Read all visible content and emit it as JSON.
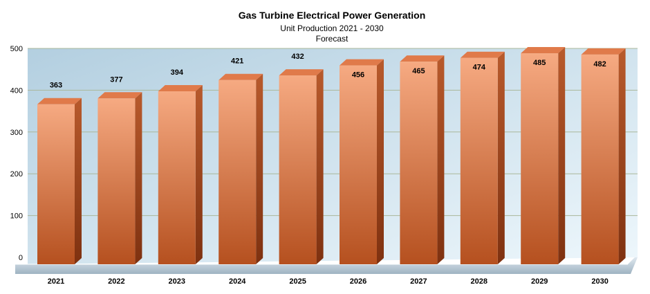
{
  "chart_data": {
    "type": "bar",
    "title": "Gas Turbine Electrical Power Generation",
    "subtitle": "Unit Production 2021 - 2030",
    "subtitle2": "Forecast",
    "categories": [
      "2021",
      "2022",
      "2023",
      "2024",
      "2025",
      "2026",
      "2027",
      "2028",
      "2029",
      "2030"
    ],
    "values": [
      363,
      377,
      394,
      421,
      432,
      456,
      465,
      474,
      485,
      482
    ],
    "value_labels": [
      "363",
      "377",
      "394",
      "421",
      "432",
      "456",
      "465",
      "474",
      "485",
      "482"
    ],
    "yticks": [
      0,
      100,
      200,
      300,
      400,
      500
    ],
    "ytick_labels": [
      "0",
      "100",
      "200",
      "300",
      "400",
      "500"
    ],
    "ylim": [
      0,
      500
    ],
    "xlabel": "",
    "ylabel": "",
    "grid": true,
    "colors": {
      "bar_top": "#f6aa82",
      "bar_bottom": "#b5501f",
      "bar_side": "#8e3a13",
      "bar_cap": "#e07a4a",
      "bg_top": "#b3cfe0",
      "bg_bottom": "#e8f4fb",
      "grid": "#aab79a",
      "floor": "#b8c8d4"
    }
  }
}
